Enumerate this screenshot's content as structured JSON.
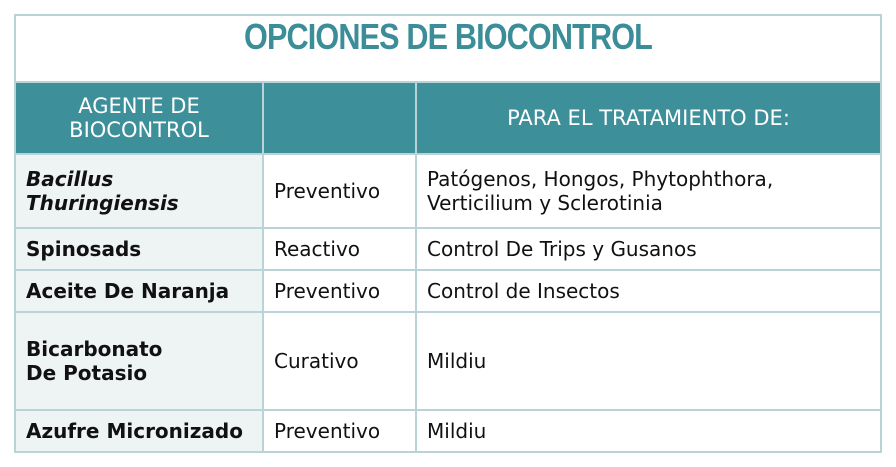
{
  "title": "OPCIONES DE BIOCONTROL",
  "headers": [
    "AGENTE DE BIOCONTROL",
    "",
    "PARA EL TRATAMIENTO DE:"
  ],
  "rows": [
    {
      "agent_line1": "Bacillus",
      "agent_line2": "Thuringiensis",
      "type": "Preventivo",
      "treatment_line1": "Patógenos, Hongos, Phytophthora,",
      "treatment_line2": "Verticilium y Sclerotinia"
    },
    {
      "agent_line1": "Spinosads",
      "type": "Reactivo",
      "treatment_line1": "Control De Trips y Gusanos"
    },
    {
      "agent_line1": "Aceite De Naranja",
      "type": "Preventivo",
      "treatment_line1": "Control de Insectos"
    },
    {
      "agent_line1": "Bicarbonato",
      "agent_line2": "De Potasio",
      "type": "Curativo",
      "treatment_line1": "Mildiu"
    },
    {
      "agent_line1": "Azufre Micronizado",
      "type": "Preventivo",
      "treatment_line1": "Mildiu"
    }
  ],
  "colors": {
    "accent": "#3d8f9a",
    "first_column_bg": "#eef3f4"
  }
}
